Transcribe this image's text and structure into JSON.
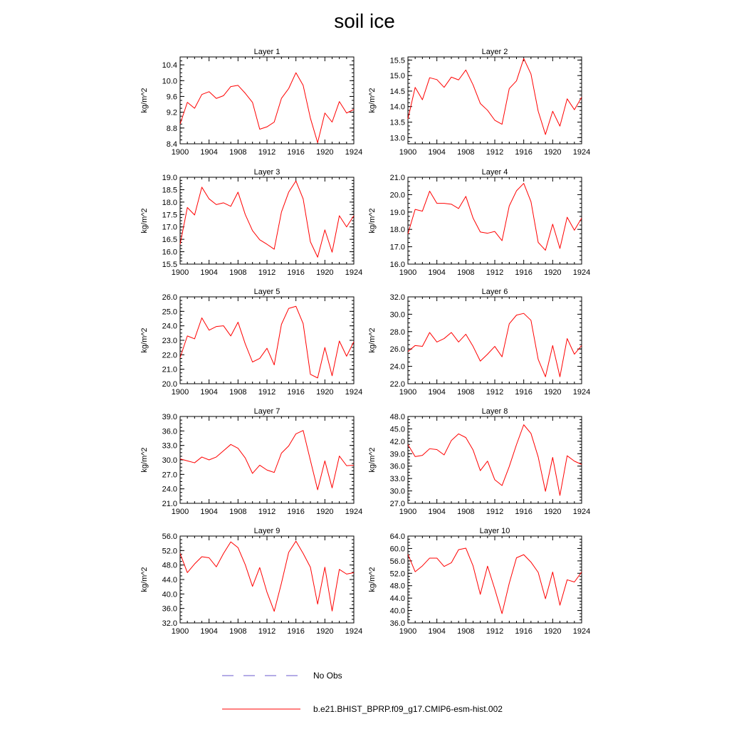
{
  "title": "soil ice",
  "legend": {
    "items": [
      {
        "label": "No Obs",
        "color": "#6a5acd",
        "dashed": true
      },
      {
        "label": "b.e21.BHIST_BPRP.f09_g17.CMIP6-esm-hist.002",
        "color": "#ff0000",
        "dashed": false
      }
    ]
  },
  "chart_data": [
    {
      "type": "line",
      "title": "Layer 1",
      "xlabel": "",
      "ylabel": "kg/m^2",
      "xlim": [
        1900,
        1924
      ],
      "ylim": [
        8.4,
        10.6
      ],
      "xticks": [
        "1900",
        "1904",
        "1908",
        "1912",
        "1916",
        "1920",
        "1924"
      ],
      "yticks": [
        "8.4",
        "8.8",
        "9.2",
        "9.6",
        "10.0",
        "10.4"
      ],
      "x": [
        1900,
        1901,
        1902,
        1903,
        1904,
        1905,
        1906,
        1907,
        1908,
        1909,
        1910,
        1911,
        1912,
        1913,
        1914,
        1915,
        1916,
        1917,
        1918,
        1919,
        1920,
        1921,
        1922,
        1923,
        1924
      ],
      "series": [
        {
          "values": [
            8.9,
            9.45,
            9.3,
            9.65,
            9.72,
            9.55,
            9.62,
            9.85,
            9.88,
            9.68,
            9.45,
            8.77,
            8.83,
            8.95,
            9.55,
            9.8,
            10.2,
            9.88,
            9.05,
            8.43,
            9.18,
            8.95,
            9.47,
            9.18,
            9.27
          ],
          "color": "#ff0000"
        }
      ]
    },
    {
      "type": "line",
      "title": "Layer 2",
      "xlabel": "",
      "ylabel": "kg/m^2",
      "xlim": [
        1900,
        1924
      ],
      "ylim": [
        12.8,
        15.6
      ],
      "xticks": [
        "1900",
        "1904",
        "1908",
        "1912",
        "1916",
        "1920",
        "1924"
      ],
      "yticks": [
        "13.0",
        "13.5",
        "14.0",
        "14.5",
        "15.0",
        "15.5"
      ],
      "x": [
        1900,
        1901,
        1902,
        1903,
        1904,
        1905,
        1906,
        1907,
        1908,
        1909,
        1910,
        1911,
        1912,
        1913,
        1914,
        1915,
        1916,
        1917,
        1918,
        1919,
        1920,
        1921,
        1922,
        1923,
        1924
      ],
      "series": [
        {
          "values": [
            13.6,
            14.62,
            14.22,
            14.93,
            14.87,
            14.62,
            14.95,
            14.86,
            15.18,
            14.7,
            14.1,
            13.88,
            13.56,
            13.43,
            14.58,
            14.83,
            15.55,
            15.05,
            13.85,
            13.1,
            13.85,
            13.37,
            14.25,
            13.9,
            14.3
          ],
          "color": "#ff0000"
        }
      ]
    },
    {
      "type": "line",
      "title": "Layer 3",
      "xlabel": "",
      "ylabel": "kg/m^2",
      "xlim": [
        1900,
        1924
      ],
      "ylim": [
        15.5,
        19.0
      ],
      "xticks": [
        "1900",
        "1904",
        "1908",
        "1912",
        "1916",
        "1920",
        "1924"
      ],
      "yticks": [
        "15.5",
        "16.0",
        "16.5",
        "17.0",
        "17.5",
        "18.0",
        "18.5",
        "19.0"
      ],
      "x": [
        1900,
        1901,
        1902,
        1903,
        1904,
        1905,
        1906,
        1907,
        1908,
        1909,
        1910,
        1911,
        1912,
        1913,
        1914,
        1915,
        1916,
        1917,
        1918,
        1919,
        1920,
        1921,
        1922,
        1923,
        1924
      ],
      "series": [
        {
          "values": [
            16.3,
            17.78,
            17.48,
            18.6,
            18.13,
            17.9,
            17.97,
            17.83,
            18.4,
            17.5,
            16.85,
            16.48,
            16.3,
            16.1,
            17.6,
            18.4,
            18.85,
            18.13,
            16.4,
            15.78,
            16.88,
            15.98,
            17.45,
            17.0,
            17.45
          ],
          "color": "#ff0000"
        }
      ]
    },
    {
      "type": "line",
      "title": "Layer 4",
      "xlabel": "",
      "ylabel": "kg/m^2",
      "xlim": [
        1900,
        1924
      ],
      "ylim": [
        16.0,
        21.0
      ],
      "xticks": [
        "1900",
        "1904",
        "1908",
        "1912",
        "1916",
        "1920",
        "1924"
      ],
      "yticks": [
        "16.0",
        "17.0",
        "18.0",
        "19.0",
        "20.0",
        "21.0"
      ],
      "x": [
        1900,
        1901,
        1902,
        1903,
        1904,
        1905,
        1906,
        1907,
        1908,
        1909,
        1910,
        1911,
        1912,
        1913,
        1914,
        1915,
        1916,
        1917,
        1918,
        1919,
        1920,
        1921,
        1922,
        1923,
        1924
      ],
      "series": [
        {
          "values": [
            17.75,
            19.15,
            19.05,
            20.2,
            19.5,
            19.5,
            19.45,
            19.2,
            19.9,
            18.65,
            17.85,
            17.78,
            17.88,
            17.35,
            19.35,
            20.22,
            20.65,
            19.6,
            17.25,
            16.8,
            18.3,
            16.9,
            18.7,
            17.95,
            18.65
          ],
          "color": "#ff0000"
        }
      ]
    },
    {
      "type": "line",
      "title": "Layer 5",
      "xlabel": "",
      "ylabel": "kg/m^2",
      "xlim": [
        1900,
        1924
      ],
      "ylim": [
        20.0,
        26.0
      ],
      "xticks": [
        "1900",
        "1904",
        "1908",
        "1912",
        "1916",
        "1920",
        "1924"
      ],
      "yticks": [
        "20.0",
        "21.0",
        "22.0",
        "23.0",
        "24.0",
        "25.0",
        "26.0"
      ],
      "x": [
        1900,
        1901,
        1902,
        1903,
        1904,
        1905,
        1906,
        1907,
        1908,
        1909,
        1910,
        1911,
        1912,
        1913,
        1914,
        1915,
        1916,
        1917,
        1918,
        1919,
        1920,
        1921,
        1922,
        1923,
        1924
      ],
      "series": [
        {
          "values": [
            21.8,
            23.3,
            23.1,
            24.55,
            23.7,
            23.95,
            24.0,
            23.3,
            24.25,
            22.75,
            21.5,
            21.75,
            22.45,
            21.3,
            24.1,
            25.2,
            25.35,
            24.15,
            20.65,
            20.4,
            22.5,
            20.55,
            22.95,
            21.9,
            22.9
          ],
          "color": "#ff0000"
        }
      ]
    },
    {
      "type": "line",
      "title": "Layer 6",
      "xlabel": "",
      "ylabel": "kg/m^2",
      "xlim": [
        1900,
        1924
      ],
      "ylim": [
        22.0,
        32.0
      ],
      "xticks": [
        "1900",
        "1904",
        "1908",
        "1912",
        "1916",
        "1920",
        "1924"
      ],
      "yticks": [
        "22.0",
        "24.0",
        "26.0",
        "28.0",
        "30.0",
        "32.0"
      ],
      "x": [
        1900,
        1901,
        1902,
        1903,
        1904,
        1905,
        1906,
        1907,
        1908,
        1909,
        1910,
        1911,
        1912,
        1913,
        1914,
        1915,
        1916,
        1917,
        1918,
        1919,
        1920,
        1921,
        1922,
        1923,
        1924
      ],
      "series": [
        {
          "values": [
            25.7,
            26.4,
            26.3,
            27.9,
            26.8,
            27.2,
            27.9,
            26.8,
            27.7,
            26.3,
            24.6,
            25.4,
            26.3,
            25.1,
            28.9,
            29.9,
            30.1,
            29.3,
            24.8,
            22.8,
            26.4,
            22.8,
            27.2,
            25.4,
            26.4
          ],
          "color": "#ff0000"
        }
      ]
    },
    {
      "type": "line",
      "title": "Layer 7",
      "xlabel": "",
      "ylabel": "kg/m^2",
      "xlim": [
        1900,
        1924
      ],
      "ylim": [
        21.0,
        39.0
      ],
      "xticks": [
        "1900",
        "1904",
        "1908",
        "1912",
        "1916",
        "1920",
        "1924"
      ],
      "yticks": [
        "21.0",
        "24.0",
        "27.0",
        "30.0",
        "33.0",
        "36.0",
        "39.0"
      ],
      "x": [
        1900,
        1901,
        1902,
        1903,
        1904,
        1905,
        1906,
        1907,
        1908,
        1909,
        1910,
        1911,
        1912,
        1913,
        1914,
        1915,
        1916,
        1917,
        1918,
        1919,
        1920,
        1921,
        1922,
        1923,
        1924
      ],
      "series": [
        {
          "values": [
            30.2,
            29.8,
            29.4,
            30.6,
            30.0,
            30.6,
            31.9,
            33.2,
            32.4,
            30.4,
            27.2,
            28.9,
            27.9,
            27.4,
            31.4,
            32.9,
            35.4,
            36.1,
            29.9,
            23.8,
            29.8,
            24.2,
            30.8,
            28.8,
            28.9
          ],
          "color": "#ff0000"
        }
      ]
    },
    {
      "type": "line",
      "title": "Layer 8",
      "xlabel": "",
      "ylabel": "kg/m^2",
      "xlim": [
        1900,
        1924
      ],
      "ylim": [
        27.0,
        48.0
      ],
      "xticks": [
        "1900",
        "1904",
        "1908",
        "1912",
        "1916",
        "1920",
        "1924"
      ],
      "yticks": [
        "27.0",
        "30.0",
        "33.0",
        "36.0",
        "39.0",
        "42.0",
        "45.0",
        "48.0"
      ],
      "x": [
        1900,
        1901,
        1902,
        1903,
        1904,
        1905,
        1906,
        1907,
        1908,
        1909,
        1910,
        1911,
        1912,
        1913,
        1914,
        1915,
        1916,
        1917,
        1918,
        1919,
        1920,
        1921,
        1922,
        1923,
        1924
      ],
      "series": [
        {
          "values": [
            41.2,
            38.3,
            38.6,
            40.2,
            40.0,
            38.7,
            42.2,
            43.8,
            42.9,
            39.9,
            34.9,
            37.2,
            32.7,
            31.3,
            35.9,
            41.2,
            46.0,
            43.9,
            38.2,
            29.9,
            38.1,
            28.9,
            38.5,
            37.2,
            36.4
          ],
          "color": "#ff0000"
        }
      ]
    },
    {
      "type": "line",
      "title": "Layer 9",
      "xlabel": "",
      "ylabel": "kg/m^2",
      "xlim": [
        1900,
        1924
      ],
      "ylim": [
        32.0,
        56.0
      ],
      "xticks": [
        "1900",
        "1904",
        "1908",
        "1912",
        "1916",
        "1920",
        "1924"
      ],
      "yticks": [
        "32.0",
        "36.0",
        "40.0",
        "44.0",
        "48.0",
        "52.0",
        "56.0"
      ],
      "x": [
        1900,
        1901,
        1902,
        1903,
        1904,
        1905,
        1906,
        1907,
        1908,
        1909,
        1910,
        1911,
        1912,
        1913,
        1914,
        1915,
        1916,
        1917,
        1918,
        1919,
        1920,
        1921,
        1922,
        1923,
        1924
      ],
      "series": [
        {
          "values": [
            51.2,
            45.9,
            48.3,
            50.3,
            50.0,
            47.5,
            51.2,
            54.4,
            52.8,
            48.1,
            42.1,
            47.3,
            40.5,
            35.2,
            43.0,
            51.5,
            54.6,
            51.2,
            47.4,
            37.2,
            47.4,
            35.3,
            46.8,
            45.5,
            45.9
          ],
          "color": "#ff0000"
        }
      ]
    },
    {
      "type": "line",
      "title": "Layer 10",
      "xlabel": "",
      "ylabel": "kg/m^2",
      "xlim": [
        1900,
        1924
      ],
      "ylim": [
        36.0,
        64.0
      ],
      "xticks": [
        "1900",
        "1904",
        "1908",
        "1912",
        "1916",
        "1920",
        "1924"
      ],
      "yticks": [
        "36.0",
        "40.0",
        "44.0",
        "48.0",
        "52.0",
        "56.0",
        "60.0",
        "64.0"
      ],
      "x": [
        1900,
        1901,
        1902,
        1903,
        1904,
        1905,
        1906,
        1907,
        1908,
        1909,
        1910,
        1911,
        1912,
        1913,
        1914,
        1915,
        1916,
        1917,
        1918,
        1919,
        1920,
        1921,
        1922,
        1923,
        1924
      ],
      "series": [
        {
          "values": [
            58.1,
            52.5,
            54.4,
            56.9,
            56.9,
            54.2,
            55.4,
            59.6,
            60.1,
            54.4,
            45.2,
            54.3,
            46.9,
            39.0,
            48.8,
            57.0,
            58.0,
            55.6,
            52.3,
            43.8,
            52.4,
            41.7,
            49.9,
            49.2,
            52.4
          ],
          "color": "#ff0000"
        }
      ]
    }
  ]
}
